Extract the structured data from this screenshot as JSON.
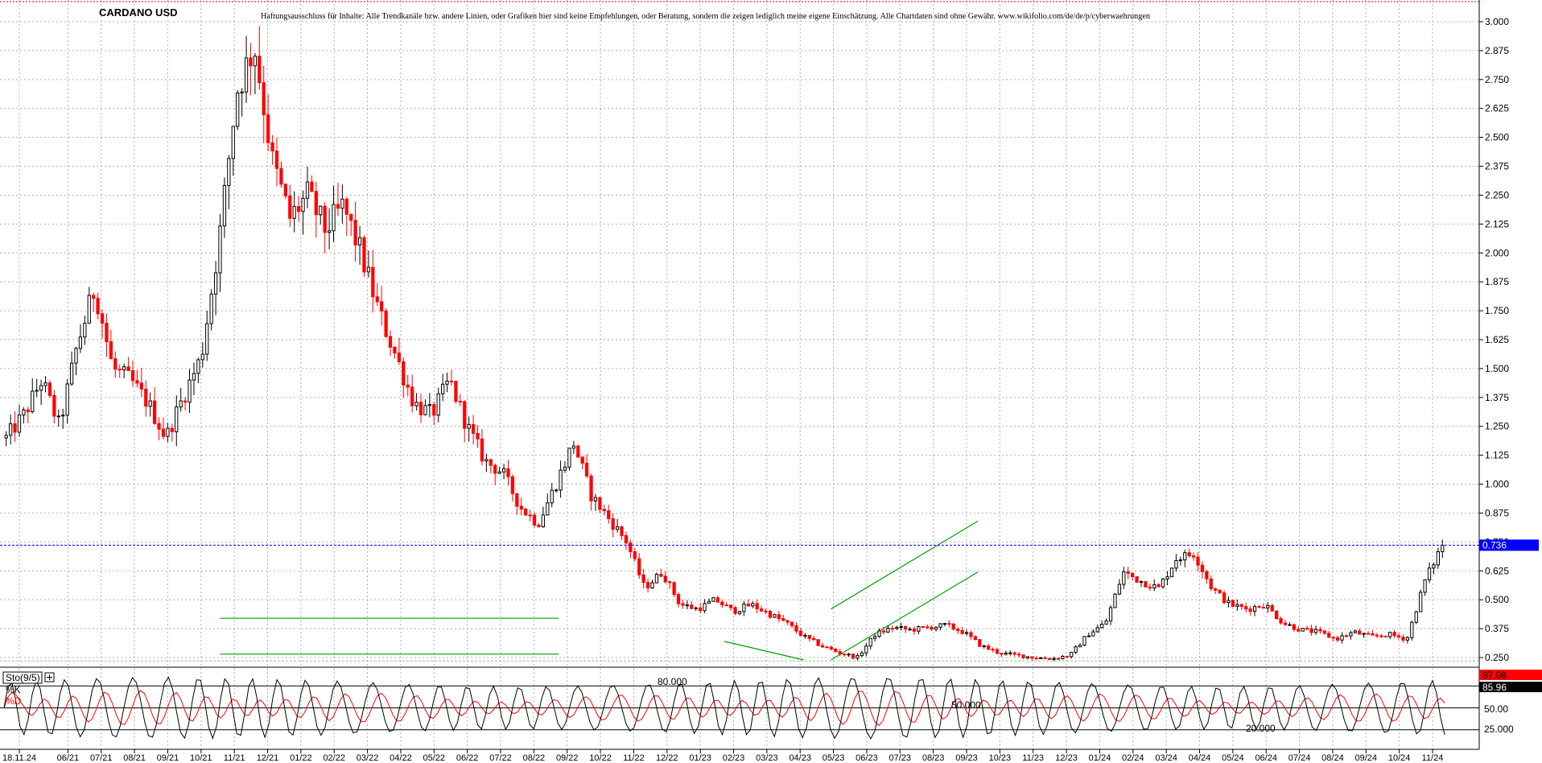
{
  "chart_data": {
    "type": "candlestick",
    "title": "CARDANO USD",
    "disclaimer": "Haftungsausschluss für Inhalte: Alle Trendkanäle bzw. andere Linien, oder Grafiken hier sind keine Empfehlungen, oder Beratung, sondern die zeigen lediglich meine eigene Einschätzung. Alle Chartdaten sind ohne Gewähr.  www.wikifolio.com/de/de/p/cyberwaehrungen",
    "x_labels": [
      "18.11.24",
      "06/21",
      "07/21",
      "08/21",
      "09/21",
      "10/21",
      "11/21",
      "12/21",
      "01/22",
      "02/22",
      "03/22",
      "04/22",
      "05/22",
      "06/22",
      "07/22",
      "08/22",
      "09/22",
      "10/22",
      "11/22",
      "12/22",
      "01/23",
      "02/23",
      "03/23",
      "04/23",
      "05/23",
      "06/23",
      "07/23",
      "08/23",
      "09/23",
      "10/23",
      "11/23",
      "12/23",
      "01/24",
      "02/24",
      "03/24",
      "04/24",
      "05/24",
      "06/24",
      "07/24",
      "08/24",
      "09/24",
      "10/24",
      "11/24"
    ],
    "y_ticks": [
      "3.000",
      "2.875",
      "2.750",
      "2.625",
      "2.500",
      "2.375",
      "2.250",
      "2.125",
      "2.000",
      "1.875",
      "1.750",
      "1.625",
      "1.500",
      "1.375",
      "1.250",
      "1.125",
      "1.000",
      "0.875",
      "0.750",
      "0.625",
      "0.500",
      "0.375",
      "0.250"
    ],
    "ylim": [
      0.225,
      3.05
    ],
    "current_price": "0.736",
    "colors": {
      "up": "#000000",
      "down": "#ff0000",
      "trend": "#00a000",
      "current": "#0000ff",
      "grid": "#b0b0b0"
    },
    "price_anchors": [
      [
        0,
        1.2
      ],
      [
        1,
        1.3
      ],
      [
        2,
        1.45
      ],
      [
        3,
        1.25
      ],
      [
        4,
        1.6
      ],
      [
        5,
        1.85
      ],
      [
        6,
        1.5
      ],
      [
        7,
        1.45
      ],
      [
        8,
        1.35
      ],
      [
        9,
        1.2
      ],
      [
        10,
        1.38
      ],
      [
        11,
        1.55
      ],
      [
        12,
        2.05
      ],
      [
        13,
        2.7
      ],
      [
        14,
        2.9
      ],
      [
        15,
        2.4
      ],
      [
        16,
        2.15
      ],
      [
        17,
        2.25
      ],
      [
        18,
        2.1
      ],
      [
        19,
        2.2
      ],
      [
        20,
        2.0
      ],
      [
        21,
        1.75
      ],
      [
        22,
        1.55
      ],
      [
        23,
        1.35
      ],
      [
        24,
        1.3
      ],
      [
        25,
        1.45
      ],
      [
        26,
        1.25
      ],
      [
        27,
        1.1
      ],
      [
        28,
        1.05
      ],
      [
        29,
        0.9
      ],
      [
        30,
        0.83
      ],
      [
        31,
        1.0
      ],
      [
        32,
        1.18
      ],
      [
        33,
        0.95
      ],
      [
        34,
        0.85
      ],
      [
        35,
        0.75
      ],
      [
        36,
        0.55
      ],
      [
        37,
        0.62
      ],
      [
        38,
        0.48
      ],
      [
        39,
        0.46
      ],
      [
        40,
        0.5
      ],
      [
        41,
        0.45
      ],
      [
        42,
        0.48
      ],
      [
        43,
        0.44
      ],
      [
        44,
        0.4
      ],
      [
        45,
        0.34
      ],
      [
        46,
        0.3
      ],
      [
        47,
        0.27
      ],
      [
        48,
        0.25
      ],
      [
        49,
        0.35
      ],
      [
        50,
        0.38
      ],
      [
        51,
        0.37
      ],
      [
        52,
        0.38
      ],
      [
        53,
        0.39
      ],
      [
        54,
        0.36
      ],
      [
        55,
        0.3
      ],
      [
        56,
        0.27
      ],
      [
        57,
        0.26
      ],
      [
        58,
        0.25
      ],
      [
        59,
        0.245
      ],
      [
        60,
        0.26
      ],
      [
        61,
        0.35
      ],
      [
        62,
        0.4
      ],
      [
        63,
        0.62
      ],
      [
        64,
        0.58
      ],
      [
        65,
        0.55
      ],
      [
        66,
        0.68
      ],
      [
        67,
        0.7
      ],
      [
        68,
        0.55
      ],
      [
        69,
        0.48
      ],
      [
        70,
        0.46
      ],
      [
        71,
        0.48
      ],
      [
        72,
        0.4
      ],
      [
        73,
        0.37
      ],
      [
        74,
        0.36
      ],
      [
        75,
        0.33
      ],
      [
        76,
        0.36
      ],
      [
        77,
        0.34
      ],
      [
        78,
        0.35
      ],
      [
        79,
        0.33
      ],
      [
        80,
        0.58
      ],
      [
        81,
        0.74
      ]
    ],
    "trend_lines": [
      [
        [
          0.15,
          0.42
        ],
        [
          0.385,
          0.42
        ]
      ],
      [
        [
          0.15,
          0.265
        ],
        [
          0.385,
          0.265
        ]
      ],
      [
        [
          0.5,
          0.32
        ],
        [
          0.555,
          0.24
        ]
      ],
      [
        [
          0.574,
          0.46
        ],
        [
          0.676,
          0.84
        ]
      ],
      [
        [
          0.574,
          0.24
        ],
        [
          0.676,
          0.62
        ]
      ]
    ],
    "stochastic": {
      "label": "Sto(9/5)",
      "k_label": "%K",
      "d_label": "%D",
      "k_value": "87.08",
      "d_value": "85.96",
      "levels": [
        "80.000",
        "50.000",
        "20.000"
      ],
      "y_ticks": [
        "50.00",
        "25.000"
      ]
    }
  }
}
